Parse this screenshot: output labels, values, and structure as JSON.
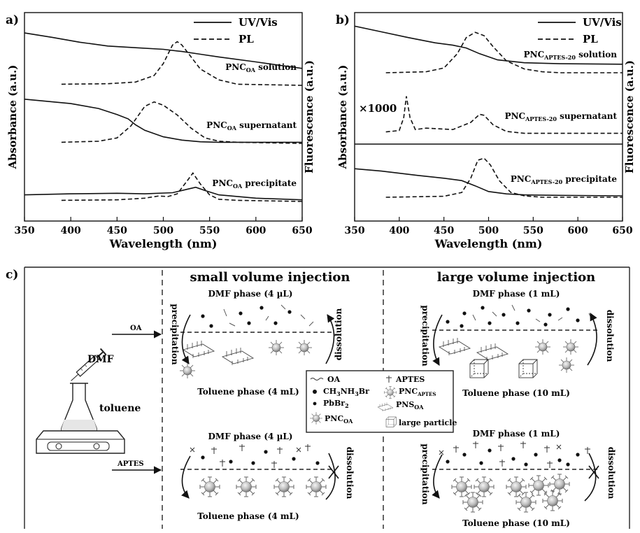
{
  "chart_data": [
    {
      "type": "line",
      "panel": "a)",
      "xlabel": "Wavelength (nm)",
      "ylabel_left": "Absorbance (a.u.)",
      "ylabel_right": "Fluorescence (a.u.)",
      "xlim": [
        350,
        650
      ],
      "xticks": [
        "350",
        "400",
        "450",
        "500",
        "550",
        "600",
        "650"
      ],
      "legend": {
        "position": "top-right",
        "entries": [
          {
            "name": "UV/Vis",
            "style": "solid"
          },
          {
            "name": "PL",
            "style": "dashed"
          }
        ]
      },
      "traces": [
        {
          "label": "PNC",
          "sub": "OA",
          "suffix": "solution",
          "uv": {
            "x": [
              350,
              380,
              410,
              440,
              470,
              500,
              520,
              540,
              560,
              600,
              650
            ],
            "y": [
              0.96,
              0.88,
              0.79,
              0.72,
              0.69,
              0.66,
              0.62,
              0.57,
              0.52,
              0.43,
              0.31
            ]
          },
          "pl": {
            "x": [
              390,
              440,
              470,
              490,
              500,
              510,
              515,
              520,
              530,
              540,
              560,
              580,
              650
            ],
            "y": [
              0.02,
              0.03,
              0.06,
              0.18,
              0.4,
              0.74,
              0.8,
              0.74,
              0.52,
              0.3,
              0.1,
              0.02,
              0.0
            ]
          }
        },
        {
          "label": "PNC",
          "sub": "OA",
          "suffix": "supernatant",
          "uv": {
            "x": [
              350,
              400,
              430,
              450,
              462,
              470,
              480,
              500,
              520,
              540,
              560,
              600,
              650
            ],
            "y": [
              0.81,
              0.73,
              0.64,
              0.53,
              0.45,
              0.34,
              0.24,
              0.12,
              0.06,
              0.03,
              0.02,
              0.02,
              0.02
            ]
          },
          "pl": {
            "x": [
              390,
              430,
              450,
              465,
              480,
              490,
              500,
              515,
              530,
              545,
              560,
              580,
              650
            ],
            "y": [
              0.02,
              0.04,
              0.1,
              0.32,
              0.68,
              0.76,
              0.7,
              0.52,
              0.28,
              0.1,
              0.04,
              0.02,
              0.0
            ]
          }
        },
        {
          "label": "PNC",
          "sub": "OA",
          "suffix": "precipitate",
          "uv": {
            "x": [
              350,
              400,
              450,
              480,
              510,
              525,
              535,
              545,
              560,
              600,
              650
            ],
            "y": [
              0.12,
              0.14,
              0.15,
              0.14,
              0.16,
              0.22,
              0.26,
              0.2,
              0.12,
              0.06,
              0.03
            ]
          },
          "pl": {
            "x": [
              390,
              450,
              480,
              495,
              505,
              515,
              525,
              532,
              540,
              550,
              560,
              580,
              650
            ],
            "y": [
              0.02,
              0.03,
              0.06,
              0.1,
              0.09,
              0.14,
              0.36,
              0.52,
              0.32,
              0.12,
              0.04,
              0.02,
              0.0
            ]
          }
        }
      ]
    },
    {
      "type": "line",
      "panel": "b)",
      "xlabel": "Wavelength (nm)",
      "ylabel_left": "Absorbance (a.u.)",
      "ylabel_right": "Fluorescence (a.u.)",
      "xlim": [
        350,
        650
      ],
      "xticks": [
        "350",
        "400",
        "450",
        "500",
        "550",
        "600",
        "650"
      ],
      "annotation": "×1000",
      "legend": {
        "position": "top-right",
        "entries": [
          {
            "name": "UV/Vis",
            "style": "solid"
          },
          {
            "name": "PL",
            "style": "dashed"
          }
        ]
      },
      "traces": [
        {
          "label": "PNC",
          "sub": "APTES-20",
          "suffix": "solution",
          "uv": {
            "x": [
              350,
              380,
              410,
              440,
              460,
              475,
              490,
              510,
              540,
              580,
              650
            ],
            "y": [
              0.98,
              0.86,
              0.74,
              0.63,
              0.58,
              0.52,
              0.4,
              0.27,
              0.21,
              0.19,
              0.18
            ]
          },
          "pl": {
            "x": [
              385,
              430,
              450,
              465,
              475,
              485,
              495,
              505,
              520,
              540,
              560,
              580,
              650
            ],
            "y": [
              0.0,
              0.02,
              0.1,
              0.4,
              0.74,
              0.85,
              0.78,
              0.55,
              0.25,
              0.08,
              0.02,
              0.0,
              0.0
            ]
          }
        },
        {
          "label": "PNC",
          "sub": "APTES-20",
          "suffix": "supernatant",
          "uv": null,
          "pl": {
            "x": [
              385,
              400,
              405,
              408,
              412,
              418,
              430,
              460,
              480,
              490,
              495,
              505,
              520,
              540,
              650
            ],
            "y": [
              0.05,
              0.08,
              0.35,
              0.8,
              0.35,
              0.1,
              0.13,
              0.1,
              0.25,
              0.42,
              0.4,
              0.2,
              0.06,
              0.02,
              0.02
            ]
          }
        },
        {
          "label": "PNC",
          "sub": "APTES-20",
          "suffix": "precipitate",
          "uv": {
            "x": [
              350,
              380,
              420,
              450,
              470,
              485,
              500,
              520,
              540,
              580,
              650
            ],
            "y": [
              0.6,
              0.55,
              0.46,
              0.4,
              0.35,
              0.24,
              0.12,
              0.07,
              0.05,
              0.04,
              0.03
            ]
          },
          "pl": {
            "x": [
              385,
              450,
              470,
              480,
              488,
              495,
              502,
              512,
              525,
              540,
              560,
              650
            ],
            "y": [
              0.0,
              0.02,
              0.1,
              0.4,
              0.78,
              0.82,
              0.68,
              0.35,
              0.1,
              0.03,
              0.0,
              0.0
            ]
          }
        }
      ]
    }
  ],
  "panel_c": {
    "label": "c)",
    "left": {
      "dmf": "DMF",
      "toluene": "toluene",
      "oa": "OA",
      "aptes": "APTES"
    },
    "small_title": "small volume injection",
    "large_title": "large volume injection",
    "dmf_small": "DMF phase (4 µL)",
    "dmf_large": "DMF phase (1 mL)",
    "tol_small": "Toluene phase (4 mL)",
    "tol_large": "Toluene phase (10 mL)",
    "precipitation": "precipitation",
    "dissolution": "dissolution",
    "legend": {
      "oa": "OA",
      "aptes": "APTES",
      "ch3nh3br": "CH",
      "ch3nh3br_sub1": "3",
      "ch3nh3br_mid": "NH",
      "ch3nh3br_sub2": "3",
      "ch3nh3br_end": "Br",
      "pnc_aptes": "PNC",
      "pnc_aptes_sub": "APTES",
      "pbbr2": "PbBr",
      "pbbr2_sub": "2",
      "pns_oa": "PNS",
      "pns_oa_sub": "OA",
      "pnc_oa": "PNC",
      "pnc_oa_sub": "OA",
      "large_particle": "large particle"
    }
  }
}
